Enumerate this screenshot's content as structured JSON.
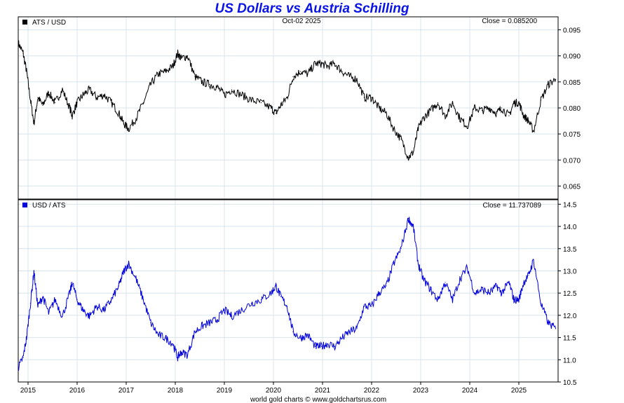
{
  "title": "US Dollars vs Austria Schilling",
  "footer": "world gold charts © www.goldchartsrus.com",
  "date_label": "Oct-02  2025",
  "colors": {
    "top_series": "#000000",
    "bottom_series": "#0000dd",
    "title": "#0a14e6",
    "grid": "#d8e4ec"
  },
  "chart_data": [
    {
      "type": "line",
      "name": "ATS / USD",
      "close_label": "Close = 0.085200",
      "ylim": [
        0.0625,
        0.0975
      ],
      "yticks": [
        0.065,
        0.07,
        0.075,
        0.08,
        0.085,
        0.09,
        0.095
      ],
      "ytick_labels": [
        "0.065",
        "0.070",
        "0.075",
        "0.080",
        "0.085",
        "0.090",
        "0.095"
      ],
      "xlim": [
        2014.8,
        2025.8
      ],
      "x": [
        2014.8,
        2014.9,
        2014.97,
        2015.05,
        2015.12,
        2015.2,
        2015.3,
        2015.42,
        2015.55,
        2015.7,
        2015.85,
        2015.9,
        2016.0,
        2016.12,
        2016.25,
        2016.4,
        2016.55,
        2016.7,
        2016.85,
        2016.95,
        2017.05,
        2017.2,
        2017.35,
        2017.5,
        2017.65,
        2017.8,
        2017.95,
        2018.05,
        2018.12,
        2018.25,
        2018.4,
        2018.55,
        2018.7,
        2018.85,
        2019.0,
        2019.15,
        2019.35,
        2019.55,
        2019.75,
        2019.95,
        2020.05,
        2020.15,
        2020.28,
        2020.4,
        2020.55,
        2020.7,
        2020.85,
        2020.98,
        2021.1,
        2021.25,
        2021.4,
        2021.55,
        2021.7,
        2021.85,
        2022.0,
        2022.15,
        2022.3,
        2022.45,
        2022.6,
        2022.75,
        2022.85,
        2022.95,
        2023.05,
        2023.2,
        2023.35,
        2023.5,
        2023.65,
        2023.8,
        2023.95,
        2024.1,
        2024.25,
        2024.4,
        2024.55,
        2024.65,
        2024.8,
        2024.9,
        2025.0,
        2025.1,
        2025.2,
        2025.3,
        2025.45,
        2025.6,
        2025.75
      ],
      "values": [
        0.0925,
        0.0905,
        0.087,
        0.0815,
        0.077,
        0.082,
        0.0805,
        0.083,
        0.081,
        0.0835,
        0.08,
        0.0785,
        0.081,
        0.0825,
        0.0835,
        0.082,
        0.0825,
        0.081,
        0.079,
        0.077,
        0.076,
        0.078,
        0.081,
        0.0845,
        0.0865,
        0.087,
        0.088,
        0.0905,
        0.0895,
        0.09,
        0.086,
        0.085,
        0.0845,
        0.084,
        0.0825,
        0.0835,
        0.0825,
        0.0815,
        0.081,
        0.08,
        0.079,
        0.0805,
        0.082,
        0.086,
        0.087,
        0.0865,
        0.0885,
        0.0885,
        0.088,
        0.0885,
        0.087,
        0.086,
        0.0855,
        0.082,
        0.082,
        0.08,
        0.079,
        0.076,
        0.074,
        0.0705,
        0.0715,
        0.076,
        0.078,
        0.0795,
        0.081,
        0.0785,
        0.081,
        0.078,
        0.0765,
        0.08,
        0.0795,
        0.08,
        0.079,
        0.08,
        0.0785,
        0.081,
        0.081,
        0.0785,
        0.0775,
        0.0755,
        0.0815,
        0.0845,
        0.0855
      ]
    },
    {
      "type": "line",
      "name": "USD / ATS",
      "close_label": "Close = 11.737089",
      "ylim": [
        10.5,
        14.6
      ],
      "yticks": [
        10.5,
        11.0,
        11.5,
        12.0,
        12.5,
        13.0,
        13.5,
        14.0,
        14.5
      ],
      "ytick_labels": [
        "10.5",
        "11.0",
        "11.5",
        "12.0",
        "12.5",
        "13.0",
        "13.5",
        "14.0",
        "14.5"
      ],
      "xlim": [
        2014.8,
        2025.8
      ],
      "x": [
        2014.8,
        2014.9,
        2014.97,
        2015.05,
        2015.12,
        2015.2,
        2015.3,
        2015.42,
        2015.55,
        2015.7,
        2015.85,
        2015.9,
        2016.0,
        2016.12,
        2016.25,
        2016.4,
        2016.55,
        2016.7,
        2016.85,
        2016.95,
        2017.05,
        2017.2,
        2017.35,
        2017.5,
        2017.65,
        2017.8,
        2017.95,
        2018.05,
        2018.12,
        2018.25,
        2018.4,
        2018.55,
        2018.7,
        2018.85,
        2019.0,
        2019.15,
        2019.35,
        2019.55,
        2019.75,
        2019.95,
        2020.05,
        2020.15,
        2020.28,
        2020.4,
        2020.55,
        2020.7,
        2020.85,
        2020.98,
        2021.1,
        2021.25,
        2021.4,
        2021.55,
        2021.7,
        2021.85,
        2022.0,
        2022.15,
        2022.3,
        2022.45,
        2022.6,
        2022.75,
        2022.85,
        2022.95,
        2023.05,
        2023.2,
        2023.35,
        2023.5,
        2023.65,
        2023.8,
        2023.95,
        2024.1,
        2024.25,
        2024.4,
        2024.55,
        2024.65,
        2024.8,
        2024.9,
        2025.0,
        2025.1,
        2025.2,
        2025.3,
        2025.45,
        2025.6,
        2025.75
      ],
      "values": [
        10.82,
        11.05,
        11.5,
        12.27,
        12.99,
        12.2,
        12.42,
        12.05,
        12.35,
        11.98,
        12.5,
        12.74,
        12.35,
        12.12,
        11.98,
        12.2,
        12.12,
        12.35,
        12.66,
        12.99,
        13.16,
        12.82,
        12.35,
        11.83,
        11.56,
        11.49,
        11.36,
        11.05,
        11.17,
        11.11,
        11.63,
        11.76,
        11.83,
        11.9,
        12.12,
        11.98,
        12.12,
        12.27,
        12.35,
        12.5,
        12.66,
        12.42,
        12.2,
        11.63,
        11.49,
        11.56,
        11.3,
        11.3,
        11.36,
        11.3,
        11.49,
        11.63,
        11.7,
        12.2,
        12.2,
        12.5,
        12.66,
        13.16,
        13.51,
        14.18,
        13.99,
        13.16,
        12.82,
        12.58,
        12.35,
        12.74,
        12.35,
        12.82,
        13.07,
        12.5,
        12.58,
        12.5,
        12.66,
        12.5,
        12.74,
        12.35,
        12.35,
        12.74,
        12.9,
        13.25,
        12.27,
        11.83,
        11.7
      ]
    }
  ],
  "x_axis": {
    "ticks": [
      2015,
      2016,
      2017,
      2018,
      2019,
      2020,
      2021,
      2022,
      2023,
      2024,
      2025
    ],
    "labels": [
      "2015",
      "2016",
      "2017",
      "2018",
      "2019",
      "2020",
      "2021",
      "2022",
      "2023",
      "2024",
      "2025"
    ]
  }
}
